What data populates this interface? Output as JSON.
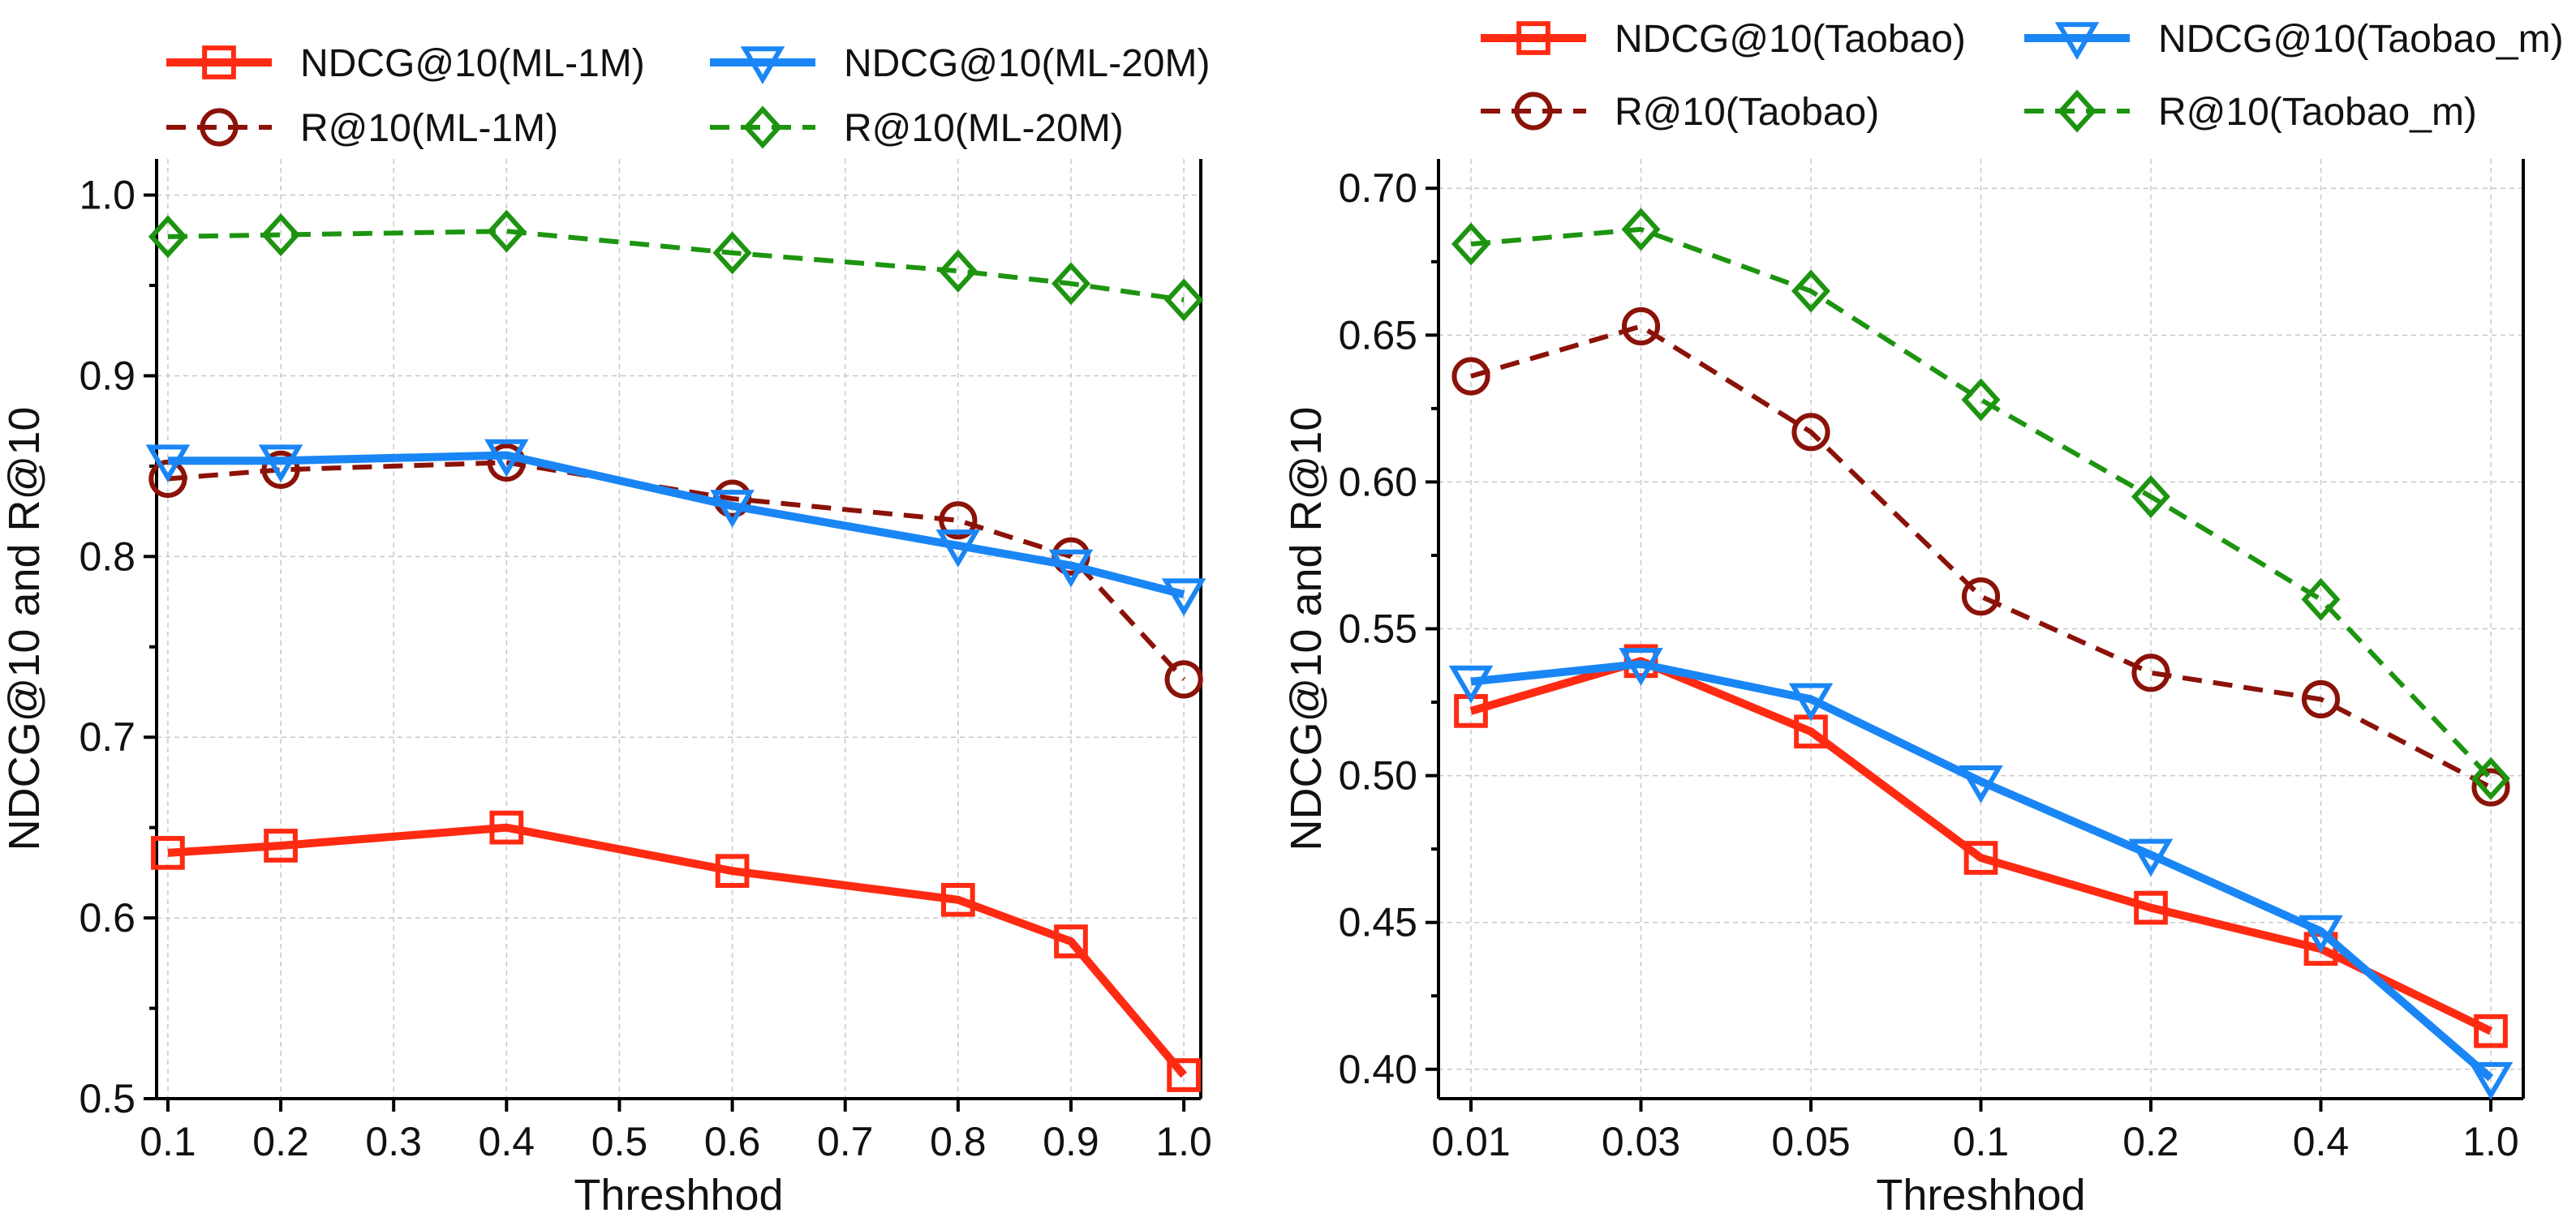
{
  "chart_data": [
    {
      "type": "line",
      "xlabel": "Threshhod",
      "ylabel": "NDCG@10 and R@10",
      "x_scale": "linear",
      "x": [
        0.1,
        0.2,
        0.4,
        0.6,
        0.8,
        0.9,
        1.0
      ],
      "xticks": [
        0.1,
        0.2,
        0.3,
        0.4,
        0.5,
        0.6,
        0.7,
        0.8,
        0.9,
        1.0
      ],
      "xtick_labels": [
        "0.1",
        "0.2",
        "0.3",
        "0.4",
        "0.5",
        "0.6",
        "0.7",
        "0.8",
        "0.9",
        "1.0"
      ],
      "xlim": [
        0.09,
        1.015
      ],
      "ylim": [
        0.5,
        1.02
      ],
      "yticks": [
        0.5,
        0.6,
        0.7,
        0.8,
        0.9,
        1.0
      ],
      "ytick_labels": [
        "0.5",
        "0.6",
        "0.7",
        "0.8",
        "0.9",
        "1.0"
      ],
      "grid": true,
      "legend_position": "top, above plot, two columns",
      "series": [
        {
          "name": "NDCG@10(ML-1M)",
          "color": "#ff2a12",
          "marker": "square",
          "dash": "solid",
          "values": [
            0.636,
            0.64,
            0.65,
            0.626,
            0.61,
            0.587,
            0.513
          ]
        },
        {
          "name": "R@10(ML-1M)",
          "color": "#8b1208",
          "marker": "circle",
          "dash": "dashed",
          "values": [
            0.843,
            0.848,
            0.852,
            0.832,
            0.82,
            0.8,
            0.732
          ]
        },
        {
          "name": "NDCG@10(ML-20M)",
          "color": "#1a86f5",
          "marker": "triangle-down",
          "dash": "solid",
          "values": [
            0.853,
            0.853,
            0.856,
            0.828,
            0.806,
            0.795,
            0.779
          ]
        },
        {
          "name": "R@10(ML-20M)",
          "color": "#1d9410",
          "marker": "diamond",
          "dash": "dashed",
          "values": [
            0.977,
            0.978,
            0.98,
            0.968,
            0.958,
            0.951,
            0.942
          ]
        }
      ]
    },
    {
      "type": "line",
      "xlabel": "Threshhod",
      "ylabel": "NDCG@10 and R@10",
      "x_scale": "categorical",
      "categories": [
        "0.01",
        "0.03",
        "0.05",
        "0.1",
        "0.2",
        "0.4",
        "1.0"
      ],
      "ylim": [
        0.39,
        0.71
      ],
      "yticks": [
        0.4,
        0.45,
        0.5,
        0.55,
        0.6,
        0.65,
        0.7
      ],
      "ytick_labels": [
        "0.40",
        "0.45",
        "0.50",
        "0.55",
        "0.60",
        "0.65",
        "0.70"
      ],
      "grid": true,
      "legend_position": "top, above plot, two columns",
      "series": [
        {
          "name": "NDCG@10(Taobao)",
          "color": "#ff2a12",
          "marker": "square",
          "dash": "solid",
          "values": [
            0.522,
            0.539,
            0.515,
            0.472,
            0.455,
            0.441,
            0.413
          ]
        },
        {
          "name": "R@10(Taobao)",
          "color": "#8b1208",
          "marker": "circle",
          "dash": "dashed",
          "values": [
            0.636,
            0.653,
            0.617,
            0.561,
            0.535,
            0.526,
            0.496
          ]
        },
        {
          "name": "NDCG@10(Taobao_m)",
          "color": "#1a86f5",
          "marker": "triangle-down",
          "dash": "solid",
          "values": [
            0.532,
            0.538,
            0.526,
            0.498,
            0.473,
            0.447,
            0.397
          ]
        },
        {
          "name": "R@10(Taobao_m)",
          "color": "#1d9410",
          "marker": "diamond",
          "dash": "dashed",
          "values": [
            0.681,
            0.686,
            0.665,
            0.628,
            0.595,
            0.56,
            0.499
          ]
        }
      ]
    }
  ]
}
